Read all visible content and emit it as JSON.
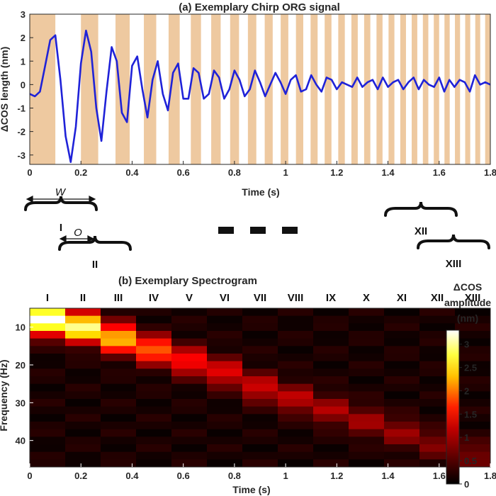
{
  "chart_data": [
    {
      "type": "line",
      "title": "(a) Exemplary Chirp ORG signal",
      "xlabel": "Time (s)",
      "ylabel": "ΔCOS length (nm)",
      "xlim": [
        0,
        1.8
      ],
      "ylim": [
        -3.4,
        3
      ],
      "xticks": [
        "0",
        "0.2",
        "0.4",
        "0.6",
        "0.8",
        "1",
        "1.2",
        "1.4",
        "1.6",
        "1.8"
      ],
      "yticks": [
        "3",
        "2",
        "1",
        "0",
        "-1",
        "-2",
        "-3"
      ],
      "grid": false,
      "series": [
        {
          "color": "#1f22d8",
          "x": [
            0.0,
            0.02,
            0.04,
            0.06,
            0.08,
            0.1,
            0.12,
            0.14,
            0.16,
            0.18,
            0.2,
            0.22,
            0.24,
            0.26,
            0.28,
            0.3,
            0.32,
            0.34,
            0.36,
            0.38,
            0.4,
            0.42,
            0.44,
            0.46,
            0.48,
            0.5,
            0.52,
            0.54,
            0.56,
            0.58,
            0.6,
            0.62,
            0.64,
            0.66,
            0.68,
            0.7,
            0.72,
            0.74,
            0.76,
            0.78,
            0.8,
            0.82,
            0.84,
            0.86,
            0.88,
            0.9,
            0.92,
            0.94,
            0.96,
            0.98,
            1.0,
            1.02,
            1.04,
            1.06,
            1.08,
            1.1,
            1.12,
            1.14,
            1.16,
            1.18,
            1.2,
            1.22,
            1.24,
            1.26,
            1.28,
            1.3,
            1.32,
            1.34,
            1.36,
            1.38,
            1.4,
            1.42,
            1.44,
            1.46,
            1.48,
            1.5,
            1.52,
            1.54,
            1.56,
            1.58,
            1.6,
            1.62,
            1.64,
            1.66,
            1.68,
            1.7,
            1.72,
            1.74,
            1.76,
            1.78,
            1.8
          ],
          "y": [
            -0.4,
            -0.5,
            -0.3,
            0.8,
            1.9,
            2.1,
            0.2,
            -2.2,
            -3.3,
            -1.8,
            0.9,
            2.3,
            1.4,
            -1.0,
            -2.4,
            -0.3,
            1.6,
            1.0,
            -1.2,
            -1.6,
            0.8,
            1.2,
            -0.2,
            -1.4,
            0.2,
            1.0,
            -0.4,
            -1.1,
            0.5,
            0.9,
            -0.6,
            -0.6,
            0.7,
            0.5,
            -0.6,
            -0.4,
            0.6,
            0.3,
            -0.6,
            -0.2,
            0.6,
            0.2,
            -0.5,
            -0.2,
            0.6,
            0.1,
            -0.5,
            0.0,
            0.5,
            0.1,
            -0.4,
            0.2,
            0.4,
            -0.3,
            -0.2,
            0.4,
            0.0,
            -0.3,
            0.3,
            0.2,
            -0.2,
            0.1,
            0.0,
            -0.1,
            0.3,
            -0.1,
            0.1,
            0.2,
            -0.2,
            0.3,
            -0.1,
            0.1,
            0.2,
            -0.2,
            0.1,
            0.3,
            -0.2,
            0.2,
            0.0,
            -0.1,
            0.3,
            -0.3,
            0.2,
            -0.1,
            0.2,
            0.1,
            -0.3,
            0.4,
            0.0,
            0.1,
            0.0
          ]
        }
      ],
      "stimulus_band_color": "#eec9a0"
    },
    {
      "type": "heatmap",
      "title": "(b) Exemplary Spectrogram",
      "xlabel": "Time (s)",
      "ylabel": "Frequency (Hz)",
      "xlim": [
        0,
        1.8
      ],
      "xticks": [
        "0",
        "0.2",
        "0.4",
        "0.6",
        "0.8",
        "1",
        "1.2",
        "1.4",
        "1.6",
        "1.8"
      ],
      "ylim": [
        5,
        47
      ],
      "yticks": [
        "10",
        "20",
        "30",
        "40"
      ],
      "columns": [
        "I",
        "II",
        "III",
        "IV",
        "V",
        "VI",
        "VII",
        "VIII",
        "IX",
        "X",
        "XI",
        "XII",
        "XIII"
      ],
      "colorbar": {
        "title": [
          "ΔCOS",
          "amplitude",
          "(nm)"
        ],
        "range": [
          0,
          3.3
        ],
        "ticks": [
          "3",
          "2.5",
          "2",
          "1.5",
          "1",
          "0.5",
          "0"
        ]
      }
    }
  ],
  "annotations": {
    "window_label": "W",
    "overlap_label": "O",
    "dashes": "■ ■ ■"
  }
}
